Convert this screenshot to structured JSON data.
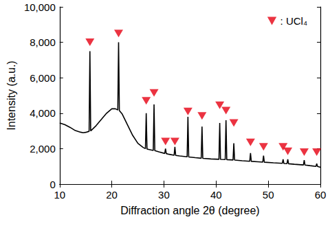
{
  "chart_data": {
    "type": "line",
    "x_label": "Diffraction angle 2θ (degree)",
    "y_label": "Intensity (a.u.)",
    "xlim": [
      10,
      60
    ],
    "xticks": [
      10,
      20,
      30,
      40,
      50,
      60
    ],
    "ylim": [
      0,
      10000
    ],
    "yticks": [
      0,
      2000,
      4000,
      6000,
      8000,
      10000
    ],
    "grid": false,
    "legend": "upper right",
    "color": "#000000",
    "x": [
      10,
      11,
      12,
      13,
      14,
      14.5,
      15,
      15.65,
      15.8,
      15.95,
      17,
      18,
      19,
      20,
      20.7,
      21.15,
      21.3,
      21.45,
      22,
      23,
      24,
      25,
      26,
      26.45,
      26.6,
      26.75,
      27.95,
      28.1,
      28.25,
      29,
      30.15,
      30.3,
      30.45,
      31,
      31.95,
      32.1,
      32.25,
      33,
      34.45,
      34.6,
      34.75,
      36,
      37.15,
      37.3,
      37.45,
      39,
      40.55,
      40.7,
      40.85,
      41.75,
      41.9,
      42.05,
      43.25,
      43.4,
      43.55,
      45,
      46.45,
      46.6,
      46.75,
      48,
      48.95,
      49.1,
      49.25,
      51,
      52.7,
      52.85,
      53.0,
      53.6,
      53.75,
      53.9,
      55,
      56.75,
      56.9,
      57.05,
      58,
      59.15,
      59.3,
      59.45,
      60
    ],
    "values": [
      3450,
      3350,
      3200,
      3020,
      2930,
      2900,
      2920,
      2980,
      7500,
      3000,
      3300,
      3650,
      4000,
      4250,
      4250,
      4180,
      8000,
      4150,
      3950,
      3350,
      2750,
      2300,
      2070,
      2000,
      4000,
      1980,
      1900,
      4500,
      1890,
      1820,
      1730,
      2000,
      1720,
      1680,
      1630,
      2100,
      1620,
      1590,
      1540,
      3800,
      1530,
      1490,
      1460,
      3250,
      1455,
      1420,
      1400,
      3450,
      1395,
      1385,
      3600,
      1380,
      1360,
      2300,
      1355,
      1320,
      1290,
      1750,
      1285,
      1260,
      1240,
      1600,
      1235,
      1200,
      1170,
      1400,
      1165,
      1155,
      1400,
      1150,
      1120,
      1080,
      1350,
      1075,
      1040,
      1000,
      1150,
      995,
      950
    ],
    "markers": {
      "name": ": UCl₄",
      "color": "#e60012",
      "marker": "triangle_down",
      "x": [
        15.8,
        21.3,
        26.6,
        28.1,
        30.3,
        32.1,
        34.6,
        37.3,
        40.7,
        41.9,
        43.4,
        46.6,
        49.1,
        52.85,
        53.75,
        56.9,
        59.3
      ],
      "values": [
        8000,
        8500,
        4700,
        5150,
        2400,
        2400,
        4100,
        3850,
        4450,
        4150,
        3450,
        2350,
        2100,
        2100,
        1850,
        1800,
        1800
      ]
    }
  }
}
